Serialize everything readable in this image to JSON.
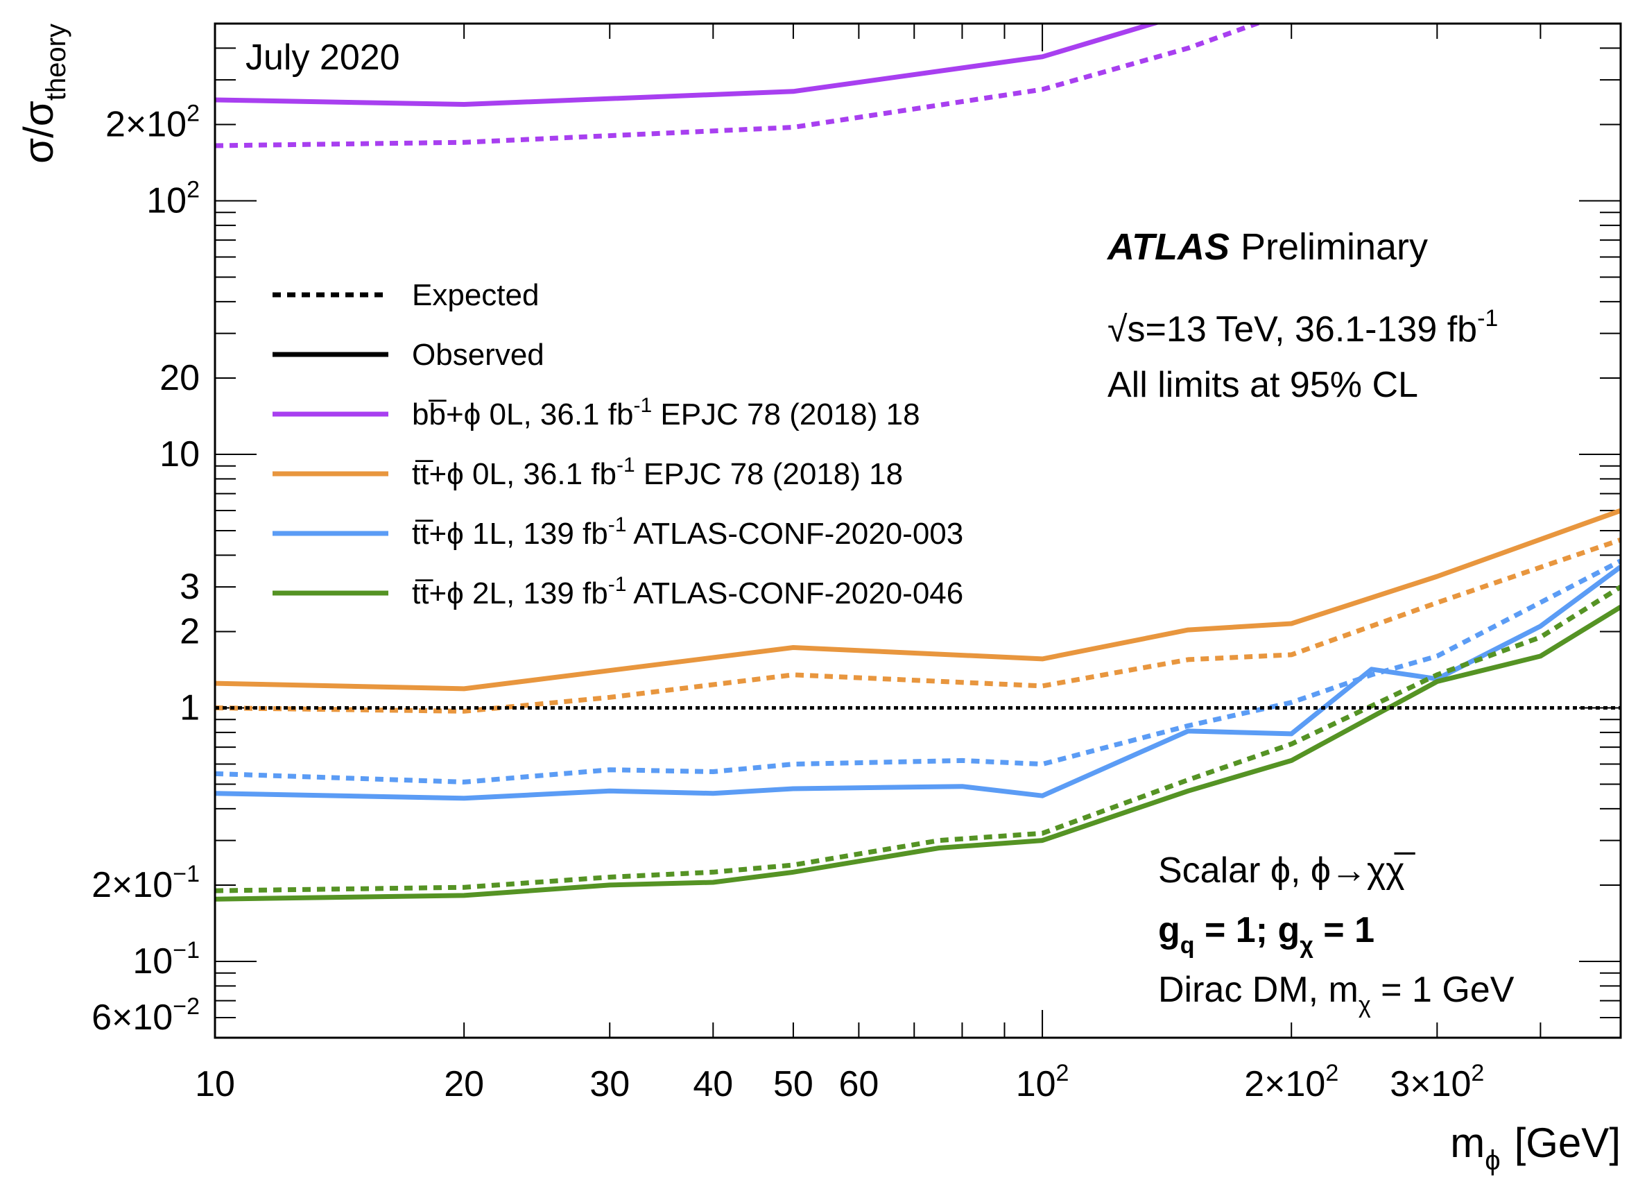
{
  "chart_data": {
    "type": "line",
    "xlabel_main": "m",
    "xlabel_sub": "ϕ",
    "xlabel_unit": "[GeV]",
    "ylabel_main": "σ/σ",
    "ylabel_sub": "theory",
    "x_scale": "log",
    "y_scale": "log",
    "xlim": [
      10,
      500
    ],
    "ylim": [
      0.05,
      500
    ],
    "x_ticks": [
      {
        "value": 10,
        "label": "10"
      },
      {
        "value": 20,
        "label": "20"
      },
      {
        "value": 30,
        "label": "30"
      },
      {
        "value": 40,
        "label": "40"
      },
      {
        "value": 50,
        "label": "50"
      },
      {
        "value": 60,
        "label": "60"
      },
      {
        "value": 100,
        "label": "10",
        "exp": "2"
      },
      {
        "value": 200,
        "label": "2×10",
        "exp": "2"
      },
      {
        "value": 300,
        "label": "3×10",
        "exp": "2"
      }
    ],
    "y_ticks": [
      {
        "value": 0.06,
        "label": "6×10",
        "exp": "−2"
      },
      {
        "value": 0.1,
        "label": "10",
        "exp": "−1"
      },
      {
        "value": 0.2,
        "label": "2×10",
        "exp": "−1"
      },
      {
        "value": 1,
        "label": "1",
        "exp": ""
      },
      {
        "value": 2,
        "label": "2",
        "exp": ""
      },
      {
        "value": 3,
        "label": "3",
        "exp": ""
      },
      {
        "value": 10,
        "label": "10",
        "exp": ""
      },
      {
        "value": 20,
        "label": "20",
        "exp": ""
      },
      {
        "value": 100,
        "label": "10",
        "exp": "2"
      },
      {
        "value": 200,
        "label": "2×10",
        "exp": "2"
      }
    ],
    "reference_line": {
      "y": 1,
      "style": "dotted",
      "color": "#000000"
    },
    "legend_placement": "upper-left",
    "legend": [
      {
        "text": "Expected",
        "style": "dotted",
        "color": "#000000"
      },
      {
        "text": "Observed",
        "style": "solid",
        "color": "#000000"
      },
      {
        "text": "bb̅+ϕ 0L, 36.1 fb",
        "sup": "-1",
        "tail": " EPJC 78 (2018) 18",
        "style": "solid",
        "color": "#a83ff0"
      },
      {
        "text": "tt̅+ϕ 0L, 36.1 fb",
        "sup": "-1",
        "tail": " EPJC 78 (2018) 18",
        "style": "solid",
        "color": "#e8963e"
      },
      {
        "text": "tt̅+ϕ 1L, 139 fb",
        "sup": "-1",
        "tail": " ATLAS-CONF-2020-003",
        "style": "solid",
        "color": "#5b9cf5"
      },
      {
        "text": "tt̅+ϕ 2L, 139 fb",
        "sup": "-1",
        "tail": " ATLAS-CONF-2020-046",
        "style": "solid",
        "color": "#559324"
      }
    ],
    "series": [
      {
        "name": "bb̅+ϕ 0L, 36.1 fb-1 EPJC 78 (2018) 18",
        "kind": "Observed",
        "color": "#a83ff0",
        "dash": "solid",
        "x": [
          10,
          20,
          50,
          100,
          150
        ],
        "y": [
          250,
          240,
          270,
          370,
          550
        ]
      },
      {
        "name": "bb̅+ϕ 0L, 36.1 fb-1 EPJC 78 (2018) 18",
        "kind": "Expected",
        "color": "#a83ff0",
        "dash": "dotted",
        "x": [
          10,
          20,
          50,
          100,
          150,
          200
        ],
        "y": [
          165,
          170,
          195,
          275,
          400,
          560
        ]
      },
      {
        "name": "tt̅+ϕ 0L, 36.1 fb-1 EPJC 78 (2018) 18",
        "kind": "Observed",
        "color": "#e8963e",
        "dash": "solid",
        "x": [
          10,
          20,
          50,
          100,
          150,
          200,
          300,
          500
        ],
        "y": [
          1.25,
          1.19,
          1.73,
          1.56,
          2.03,
          2.15,
          3.3,
          6.0
        ]
      },
      {
        "name": "tt̅+ϕ 0L, 36.1 fb-1 EPJC 78 (2018) 18",
        "kind": "Expected",
        "color": "#e8963e",
        "dash": "dotted",
        "x": [
          10,
          20,
          30,
          50,
          100,
          150,
          200,
          300,
          500
        ],
        "y": [
          1.0,
          0.97,
          1.1,
          1.35,
          1.22,
          1.55,
          1.62,
          2.6,
          4.6
        ]
      },
      {
        "name": "tt̅+ϕ 1L, 139 fb-1 ATLAS-CONF-2020-003",
        "kind": "Observed",
        "color": "#5b9cf5",
        "dash": "solid",
        "x": [
          10,
          20,
          30,
          40,
          50,
          80,
          100,
          150,
          200,
          250,
          300,
          400,
          500
        ],
        "y": [
          0.46,
          0.44,
          0.47,
          0.46,
          0.48,
          0.49,
          0.45,
          0.81,
          0.79,
          1.42,
          1.3,
          2.1,
          3.6
        ]
      },
      {
        "name": "tt̅+ϕ 1L, 139 fb-1 ATLAS-CONF-2020-003",
        "kind": "Expected",
        "color": "#5b9cf5",
        "dash": "dotted",
        "x": [
          10,
          20,
          30,
          40,
          50,
          80,
          100,
          150,
          200,
          250,
          300,
          500
        ],
        "y": [
          0.55,
          0.51,
          0.57,
          0.56,
          0.6,
          0.62,
          0.6,
          0.85,
          1.05,
          1.35,
          1.6,
          3.8
        ]
      },
      {
        "name": "tt̅+ϕ 2L, 139 fb-1 ATLAS-CONF-2020-046",
        "kind": "Observed",
        "color": "#559324",
        "dash": "solid",
        "x": [
          10,
          20,
          30,
          40,
          50,
          75,
          100,
          150,
          200,
          300,
          400,
          500
        ],
        "y": [
          0.176,
          0.182,
          0.2,
          0.205,
          0.225,
          0.28,
          0.3,
          0.47,
          0.62,
          1.27,
          1.6,
          2.5
        ]
      },
      {
        "name": "tt̅+ϕ 2L, 139 fb-1 ATLAS-CONF-2020-046",
        "kind": "Expected",
        "color": "#559324",
        "dash": "dotted",
        "x": [
          10,
          20,
          30,
          40,
          50,
          75,
          100,
          150,
          200,
          300,
          400,
          500
        ],
        "y": [
          0.19,
          0.196,
          0.215,
          0.225,
          0.24,
          0.3,
          0.32,
          0.52,
          0.72,
          1.35,
          1.9,
          3.0
        ]
      }
    ],
    "annotations": {
      "date": "July 2020",
      "experiment": "ATLAS",
      "status": "Preliminary",
      "energy_prefix": "√s=13 TeV, 36.1-139 fb",
      "energy_sup": "-1",
      "cl_text": "All limits at 95% CL",
      "model_line1": "Scalar ϕ, ϕ→χχ̅",
      "model_line2_g": "g",
      "model_line2_q": "q",
      "model_line2_mid": " = 1; g",
      "model_line2_chi": "χ",
      "model_line2_end": " = 1",
      "model_line3_pre": "Dirac DM, m",
      "model_line3_chi": "χ",
      "model_line3_end": " = 1 GeV"
    }
  }
}
